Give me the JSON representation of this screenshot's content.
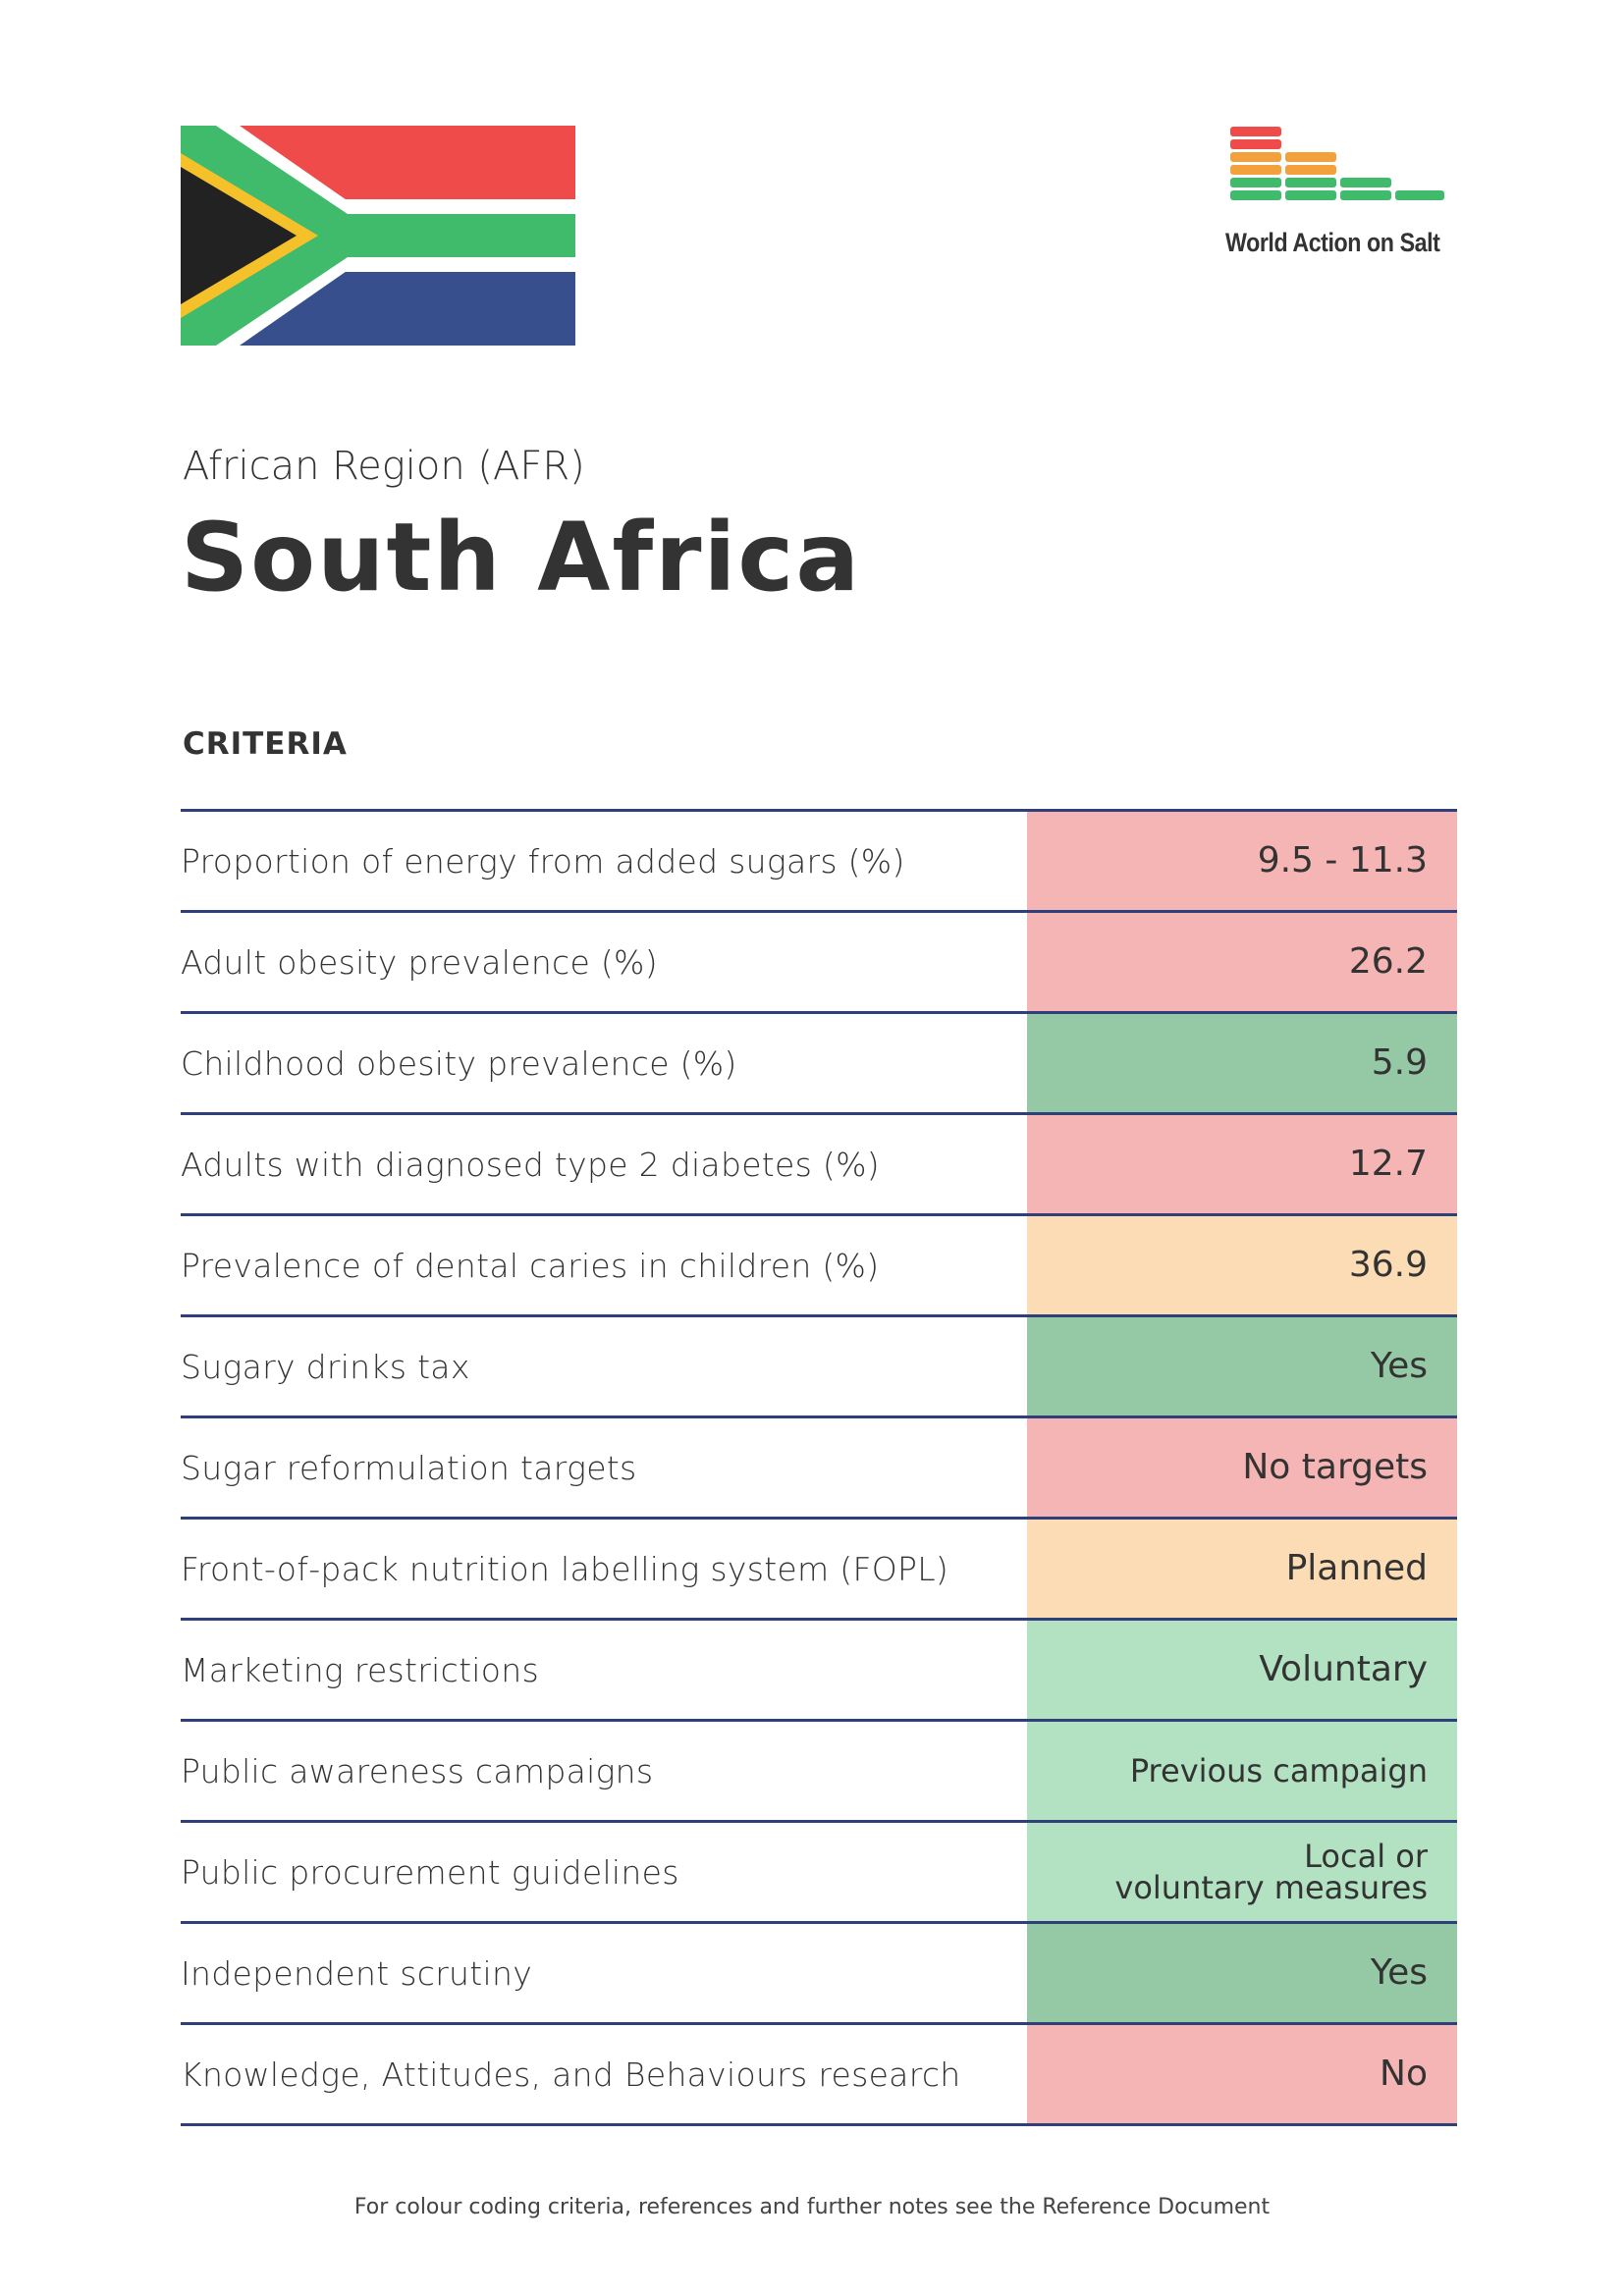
{
  "header": {
    "region": "African Region (AFR)",
    "country": "South Africa",
    "logo_text": "World Action on Salt"
  },
  "colors": {
    "red": "#f6b5b5",
    "dark_green": "#95c9a6",
    "amber": "#fbdcb4",
    "light_green": "#b3e2c3",
    "rule": "#2f3f7a",
    "flag_red": "#ef4b4b",
    "flag_green": "#3fbb6b",
    "flag_blue": "#374f8c",
    "flag_yellow": "#f4c12a",
    "flag_black": "#222222",
    "logo_red": "#ef4b4b",
    "logo_orange": "#f3a13c",
    "logo_green": "#3fbb6b"
  },
  "criteria": {
    "heading": "CRITERIA",
    "rows": [
      {
        "label": "Proportion of energy from added sugars (%)",
        "value": "9.5 - 11.3",
        "status": "red"
      },
      {
        "label": "Adult obesity prevalence (%)",
        "value": "26.2",
        "status": "red"
      },
      {
        "label": "Childhood obesity prevalence (%)",
        "value": "5.9",
        "status": "dark_green"
      },
      {
        "label": "Adults with diagnosed type 2 diabetes (%)",
        "value": "12.7",
        "status": "red"
      },
      {
        "label": "Prevalence of dental caries in children (%)",
        "value": "36.9",
        "status": "amber"
      },
      {
        "label": "Sugary drinks tax",
        "value": "Yes",
        "status": "dark_green"
      },
      {
        "label": "Sugar reformulation targets",
        "value": "No targets",
        "status": "red"
      },
      {
        "label": "Front-of-pack nutrition labelling system (FOPL)",
        "value": "Planned",
        "status": "amber"
      },
      {
        "label": "Marketing restrictions",
        "value": "Voluntary",
        "status": "light_green"
      },
      {
        "label": "Public awareness campaigns",
        "value": "Previous campaign",
        "status": "light_green"
      },
      {
        "label": "Public procurement guidelines",
        "value": "Local or\nvoluntary measures",
        "status": "light_green"
      },
      {
        "label": "Independent scrutiny",
        "value": "Yes",
        "status": "dark_green"
      },
      {
        "label": "Knowledge, Attitudes, and Behaviours research",
        "value": "No",
        "status": "red"
      }
    ]
  },
  "footer": {
    "note": "For colour coding criteria, references and further notes see the Reference Document"
  }
}
